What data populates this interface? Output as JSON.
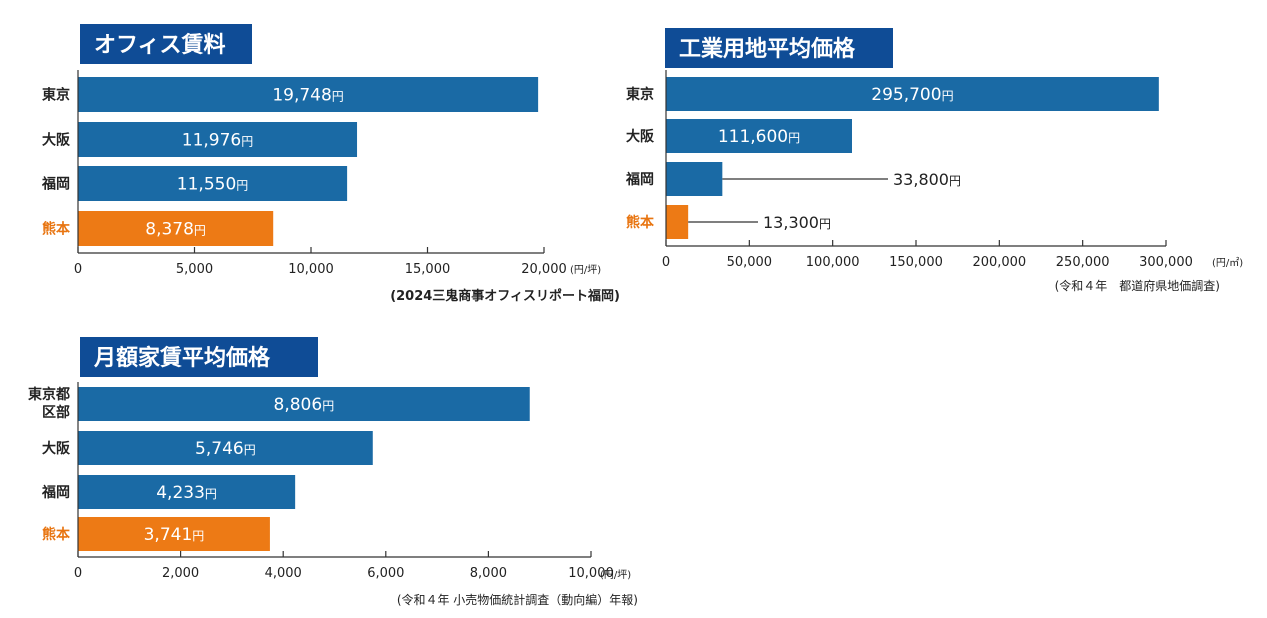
{
  "chart_data": [
    {
      "type": "bar",
      "orientation": "horizontal",
      "title": "オフィス賃料",
      "categories": [
        "東京",
        "大阪",
        "福岡",
        "熊本"
      ],
      "values": [
        19748,
        11976,
        11550,
        8378
      ],
      "value_labels": [
        "19,748",
        "11,976",
        "11,550",
        "8,378"
      ],
      "value_unit": "円",
      "highlight_index": 3,
      "xlim": [
        0,
        20000
      ],
      "ticks": [
        0,
        5000,
        10000,
        15000,
        20000
      ],
      "tick_labels": [
        "0",
        "5,000",
        "10,000",
        "15,000",
        "20,000"
      ],
      "axis_unit": "(円/坪)",
      "source": "(2024三鬼商事オフィスリポート福岡)",
      "grid": false,
      "colors": {
        "bar": "#1a6aa5",
        "highlight": "#ed7a15",
        "title_bg": "#0f4c96"
      }
    },
    {
      "type": "bar",
      "orientation": "horizontal",
      "title": "工業用地平均価格",
      "categories": [
        "東京",
        "大阪",
        "福岡",
        "熊本"
      ],
      "values": [
        295700,
        111600,
        33800,
        13300
      ],
      "value_labels": [
        "295,700",
        "111,600",
        "33,800",
        "13,300"
      ],
      "value_unit": "円",
      "highlight_index": 3,
      "xlim": [
        0,
        300000
      ],
      "ticks": [
        0,
        50000,
        100000,
        150000,
        200000,
        250000,
        300000
      ],
      "tick_labels": [
        "0",
        "50,000",
        "100,000",
        "150,000",
        "200,000",
        "250,000",
        "300,000"
      ],
      "axis_unit": "(円/㎡)",
      "source": "(令和４年　都道府県地価調査)",
      "grid": false,
      "colors": {
        "bar": "#1a6aa5",
        "highlight": "#ed7a15",
        "title_bg": "#0f4c96"
      }
    },
    {
      "type": "bar",
      "orientation": "horizontal",
      "title": "月額家賃平均価格",
      "categories": [
        "東京都区部",
        "大阪",
        "福岡",
        "熊本"
      ],
      "category_lines": [
        [
          "東京都",
          "区部"
        ],
        [
          "大阪"
        ],
        [
          "福岡"
        ],
        [
          "熊本"
        ]
      ],
      "values": [
        8806,
        5746,
        4233,
        3741
      ],
      "value_labels": [
        "8,806",
        "5,746",
        "4,233",
        "3,741"
      ],
      "value_unit": "円",
      "highlight_index": 3,
      "xlim": [
        0,
        10000
      ],
      "ticks": [
        0,
        2000,
        4000,
        6000,
        8000,
        10000
      ],
      "tick_labels": [
        "0",
        "2,000",
        "4,000",
        "6,000",
        "8,000",
        "10,000"
      ],
      "axis_unit": "(円/坪)",
      "source": "(令和４年 小売物価統計調査（動向編）年報)",
      "grid": false,
      "colors": {
        "bar": "#1a6aa5",
        "highlight": "#ed7a15",
        "title_bg": "#0f4c96"
      }
    }
  ]
}
